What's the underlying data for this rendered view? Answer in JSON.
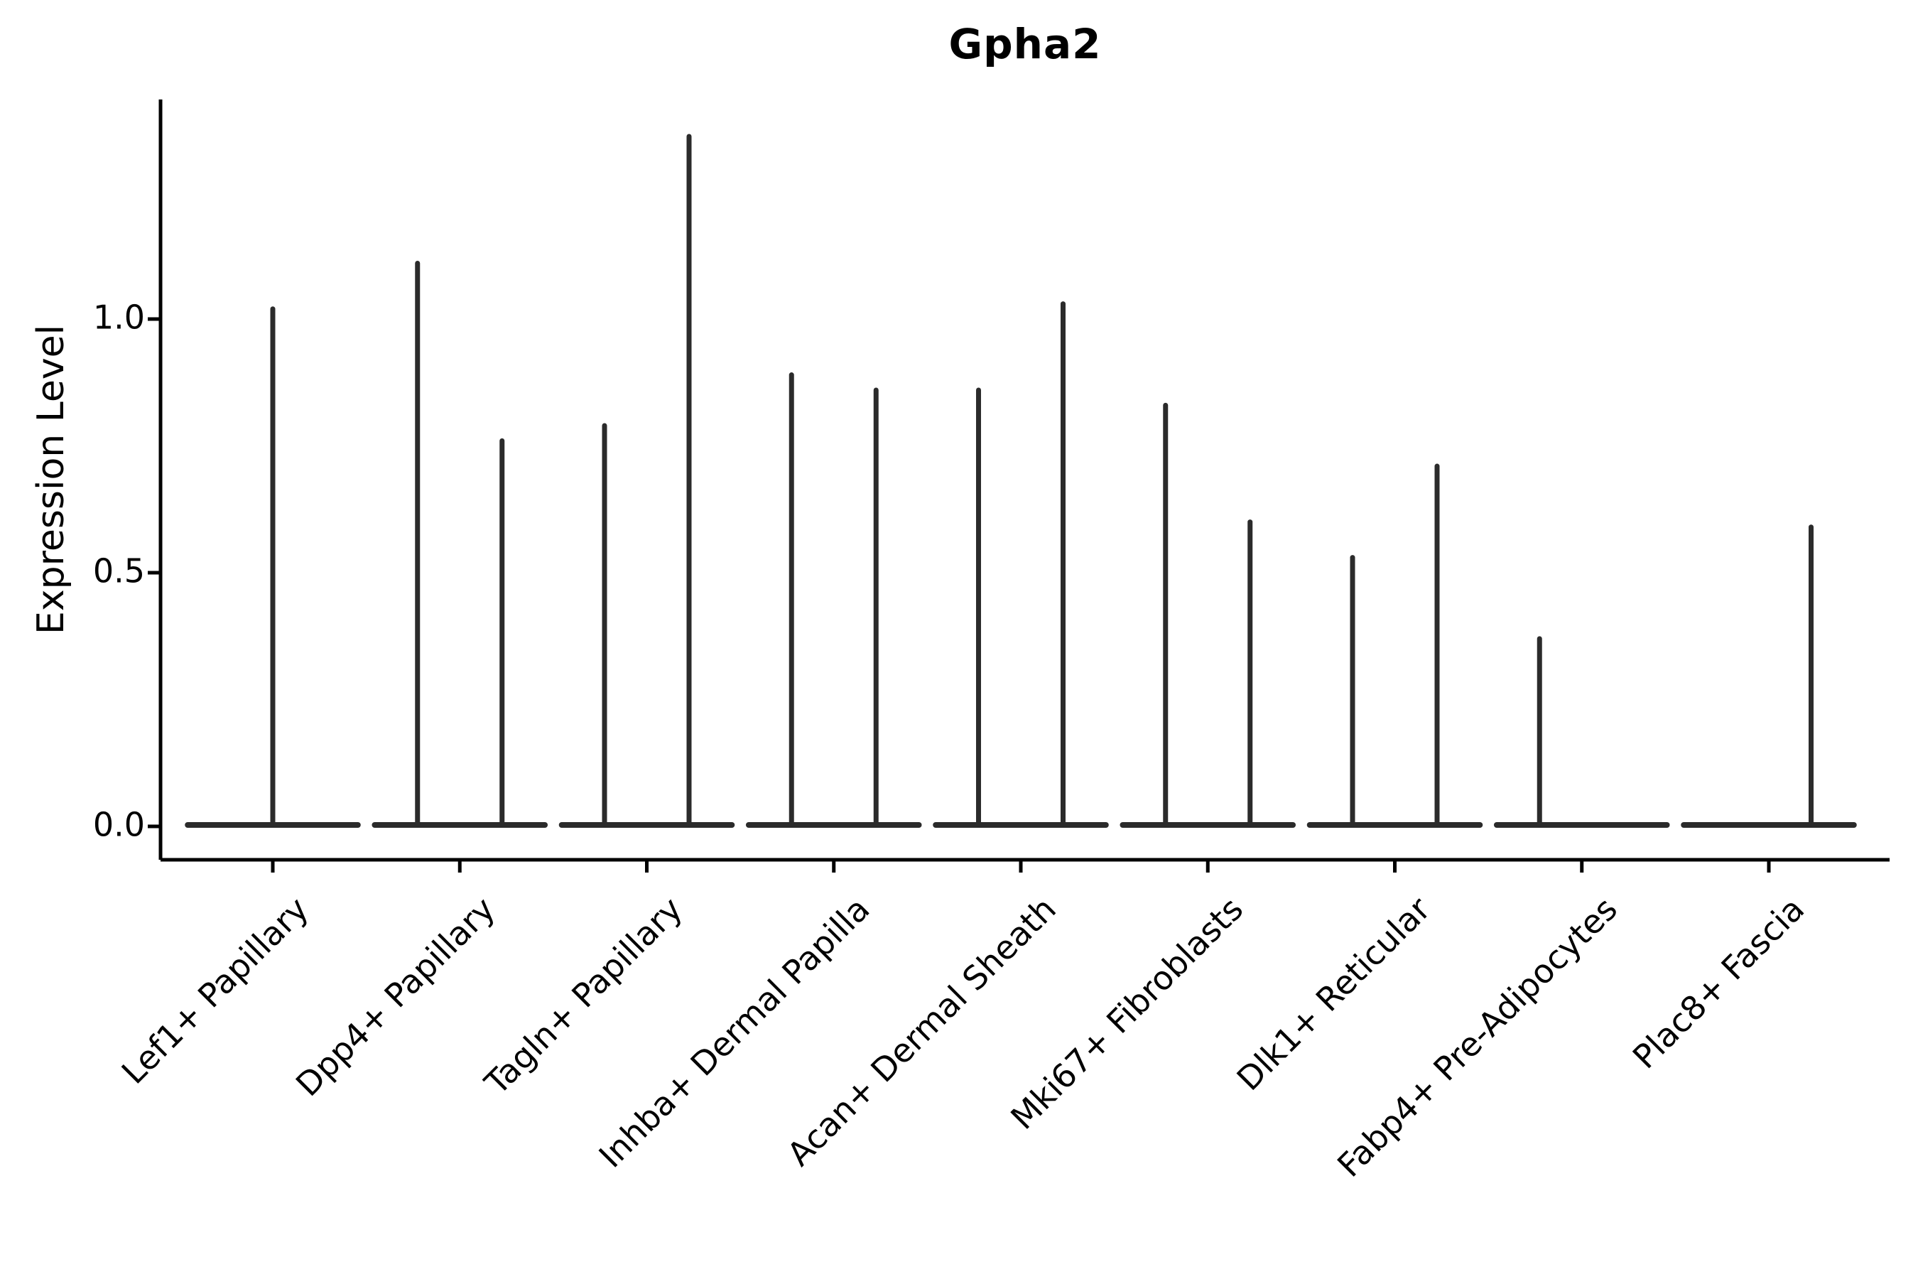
{
  "chart_data": {
    "type": "violin",
    "title": "Gpha2",
    "xlabel": "",
    "ylabel": "Expression Level",
    "yticks": [
      0.0,
      0.5,
      1.0
    ],
    "ytick_labels": [
      "0.0",
      "0.5",
      "1.0"
    ],
    "ylim": [
      -0.07,
      1.43
    ],
    "grid": false,
    "legend": null,
    "style": {
      "violin_color": "#2b2b2b",
      "axis_color": "#000000",
      "background": "#ffffff",
      "note": "each violin collapses to a flat base line at 0 expression with a thin vertical spike up to its peak value"
    },
    "categories": [
      "Lef1+ Papillary",
      "Dpp4+ Papillary",
      "Tagln+ Papillary",
      "Inhba+ Dermal Papilla",
      "Acan+ Dermal Sheath",
      "Mki67+ Fibroblasts",
      "Dlk1+ Reticular",
      "Fabp4+ Pre-Adipocytes",
      "Plac8+ Fascia"
    ],
    "group_half_width": 0.455,
    "groups": [
      {
        "category": "Lef1+ Papillary",
        "violins": [
          {
            "offset": 0.0,
            "peak": 1.02
          }
        ]
      },
      {
        "category": "Dpp4+ Papillary",
        "violins": [
          {
            "offset": -0.226,
            "peak": 1.11
          },
          {
            "offset": 0.226,
            "peak": 0.76
          }
        ]
      },
      {
        "category": "Tagln+ Papillary",
        "violins": [
          {
            "offset": -0.226,
            "peak": 0.79
          },
          {
            "offset": 0.226,
            "peak": 1.36
          }
        ]
      },
      {
        "category": "Inhba+ Dermal Papilla",
        "violins": [
          {
            "offset": -0.226,
            "peak": 0.89
          },
          {
            "offset": 0.226,
            "peak": 0.86
          }
        ]
      },
      {
        "category": "Acan+ Dermal Sheath",
        "violins": [
          {
            "offset": -0.226,
            "peak": 0.86
          },
          {
            "offset": 0.226,
            "peak": 1.03
          }
        ]
      },
      {
        "category": "Mki67+ Fibroblasts",
        "violins": [
          {
            "offset": -0.226,
            "peak": 0.83
          },
          {
            "offset": 0.226,
            "peak": 0.6
          }
        ]
      },
      {
        "category": "Dlk1+ Reticular",
        "violins": [
          {
            "offset": -0.226,
            "peak": 0.53
          },
          {
            "offset": 0.226,
            "peak": 0.71
          }
        ]
      },
      {
        "category": "Fabp4+ Pre-Adipocytes",
        "violins": [
          {
            "offset": -0.226,
            "peak": 0.37
          }
        ]
      },
      {
        "category": "Plac8+ Fascia",
        "violins": [
          {
            "offset": 0.226,
            "peak": 0.59
          }
        ]
      }
    ]
  }
}
